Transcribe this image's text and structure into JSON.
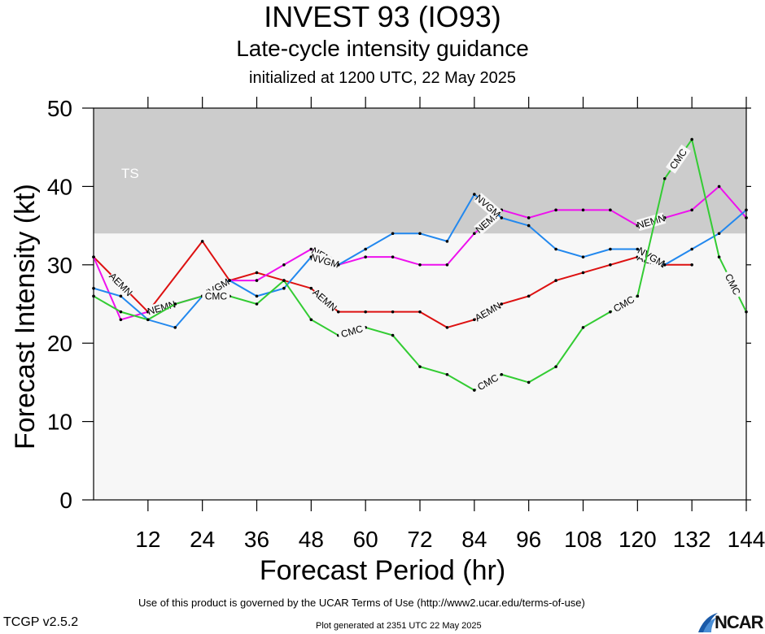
{
  "header": {
    "title": "INVEST 93 (IO93)",
    "subtitle": "Late-cycle intensity guidance",
    "init_text": "initialized at 1200 UTC, 22 May 2025"
  },
  "footer": {
    "terms": "Use of this product is governed by the UCAR Terms of Use (http://www2.ucar.edu/terms-of-use)",
    "version": "TCGP v2.5.2",
    "generated": "Plot generated at 2351 UTC   22 May 2025",
    "logo": "NCAR"
  },
  "chart_data": {
    "type": "line",
    "title": "INVEST 93 (IO93)",
    "xlabel": "Forecast Period (hr)",
    "ylabel": "Forecast Intensity (kt)",
    "xlim": [
      0,
      144
    ],
    "ylim": [
      0,
      50
    ],
    "xticks": [
      12,
      24,
      36,
      48,
      60,
      72,
      84,
      96,
      108,
      120,
      132,
      144
    ],
    "yticks": [
      0,
      10,
      20,
      30,
      40,
      50
    ],
    "bands": [
      {
        "label": "TS",
        "from": 34,
        "to": 50,
        "color": "#cccccc"
      }
    ],
    "plot_background": "#f7f7f7",
    "series": [
      {
        "name": "AEMN",
        "color": "#dd1111",
        "x": [
          0,
          12,
          24,
          30,
          36,
          42,
          48,
          54,
          60,
          66,
          72,
          78,
          84,
          90,
          96,
          102,
          108,
          114,
          120,
          126,
          132
        ],
        "y": [
          31,
          24,
          33,
          28,
          29,
          28,
          27,
          24,
          24,
          24,
          24,
          22,
          23,
          25,
          26,
          28,
          29,
          30,
          31,
          30,
          30
        ],
        "labels_at": [
          18,
          48,
          84,
          120
        ]
      },
      {
        "name": "NEMN",
        "color": "#ee11ee",
        "x": [
          0,
          6,
          12,
          18,
          24,
          30,
          36,
          42,
          48,
          54,
          60,
          66,
          72,
          78,
          84,
          90,
          96,
          102,
          108,
          114,
          120,
          126,
          132,
          138,
          144
        ],
        "y": [
          31,
          23,
          24,
          25,
          26,
          28,
          28,
          30,
          32,
          30,
          31,
          31,
          30,
          30,
          34,
          37,
          36,
          37,
          37,
          37,
          35,
          36,
          37,
          40,
          36
        ],
        "labels_at": [
          12,
          48,
          84,
          120
        ]
      },
      {
        "name": "NVGM",
        "color": "#2288ee",
        "x": [
          0,
          6,
          12,
          18,
          24,
          30,
          36,
          42,
          48,
          54,
          60,
          66,
          72,
          78,
          84,
          90,
          96,
          102,
          108,
          114,
          120,
          126,
          132,
          138,
          144
        ],
        "y": [
          27,
          26,
          23,
          22,
          26,
          28,
          26,
          27,
          31,
          30,
          32,
          34,
          34,
          33,
          39,
          36,
          35,
          32,
          31,
          32,
          32,
          30,
          32,
          34,
          37
        ],
        "labels_at": [
          24,
          48,
          84,
          120
        ]
      },
      {
        "name": "CMC",
        "color": "#33cc33",
        "x": [
          0,
          6,
          12,
          18,
          24,
          30,
          36,
          42,
          48,
          54,
          60,
          66,
          72,
          78,
          84,
          90,
          96,
          102,
          108,
          114,
          120,
          126,
          132,
          138,
          144
        ],
        "y": [
          26,
          24,
          23,
          25,
          26,
          26,
          25,
          28,
          23,
          21,
          22,
          21,
          17,
          16,
          14,
          16,
          15,
          17,
          22,
          24,
          26,
          41,
          46,
          31,
          24
        ],
        "labels_at": [
          24,
          54,
          84,
          114,
          126,
          138
        ]
      }
    ]
  }
}
